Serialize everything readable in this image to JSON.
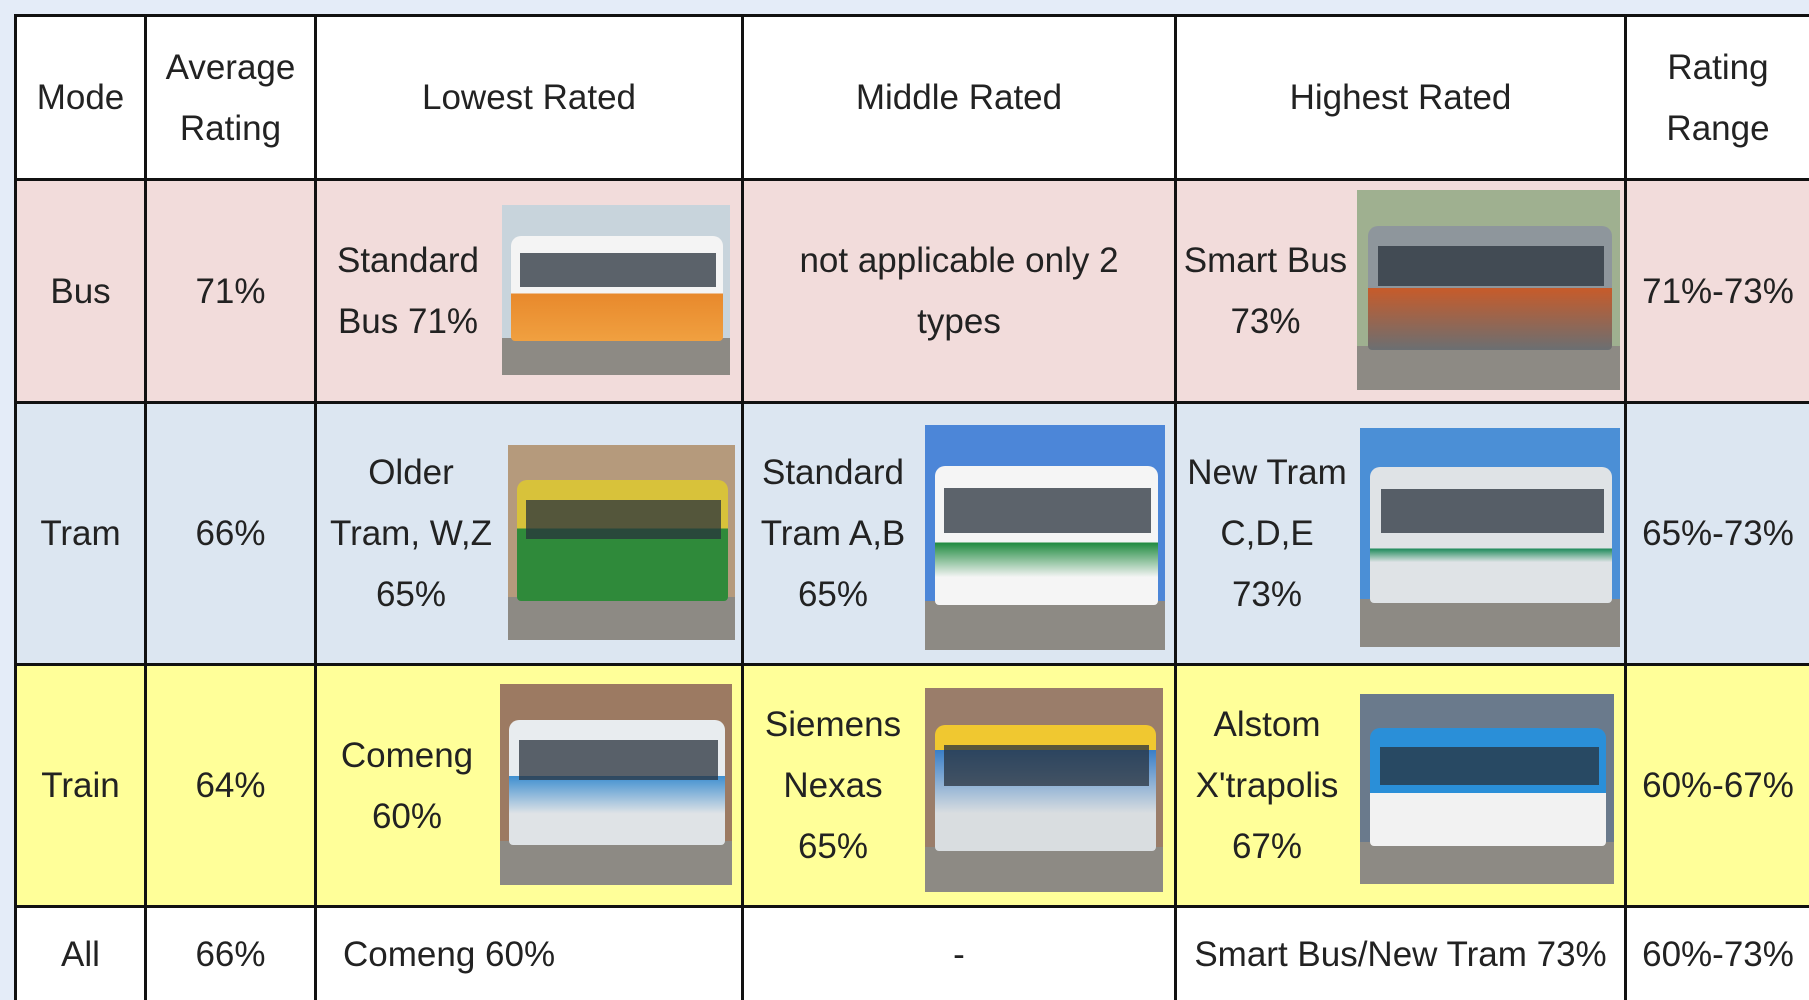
{
  "header": {
    "cells": [
      {
        "lines": [
          "Mode"
        ]
      },
      {
        "lines": [
          "Average",
          "Rating"
        ]
      },
      {
        "lines": [
          "Lowest Rated"
        ]
      },
      {
        "lines": [
          "Middle Rated"
        ]
      },
      {
        "lines": [
          "Highest Rated"
        ]
      },
      {
        "lines": [
          "Rating",
          "Range"
        ]
      }
    ]
  },
  "table": {
    "rows": [
      {
        "cells": [
          {
            "lines": [
              "Bus"
            ]
          },
          {
            "lines": [
              "71%"
            ]
          },
          {
            "lines": [
              "Standard",
              "Bus 71%"
            ]
          },
          {
            "lines": [
              "not applicable only 2",
              "types"
            ]
          },
          {
            "lines": [
              "Smart Bus",
              "73%"
            ]
          },
          {
            "lines": [
              "71%-73%"
            ]
          }
        ]
      },
      {
        "cells": [
          {
            "lines": [
              "Tram"
            ]
          },
          {
            "lines": [
              "66%"
            ]
          },
          {
            "lines": [
              "Older",
              "Tram, W,Z",
              "65%"
            ]
          },
          {
            "lines": [
              "Standard",
              "Tram A,B",
              "65%"
            ]
          },
          {
            "lines": [
              "New Tram",
              "C,D,E",
              "73%"
            ]
          },
          {
            "lines": [
              "65%-73%"
            ]
          }
        ]
      },
      {
        "cells": [
          {
            "lines": [
              "Train"
            ]
          },
          {
            "lines": [
              "64%"
            ]
          },
          {
            "lines": [
              "Comeng",
              "60%"
            ]
          },
          {
            "lines": [
              "Siemens",
              "Nexas",
              "65%"
            ]
          },
          {
            "lines": [
              "Alstom",
              "X'trapolis",
              "67%"
            ]
          },
          {
            "lines": [
              "60%-67%"
            ]
          }
        ]
      },
      {
        "cells": [
          {
            "lines": [
              "All"
            ]
          },
          {
            "lines": [
              "66%"
            ]
          },
          {
            "lines": [
              "Comeng 60%"
            ]
          },
          {
            "lines": [
              "-"
            ]
          },
          {
            "lines": [
              "Smart Bus/New Tram 73%"
            ]
          },
          {
            "lines": [
              "60%-73%"
            ]
          }
        ]
      }
    ]
  }
}
